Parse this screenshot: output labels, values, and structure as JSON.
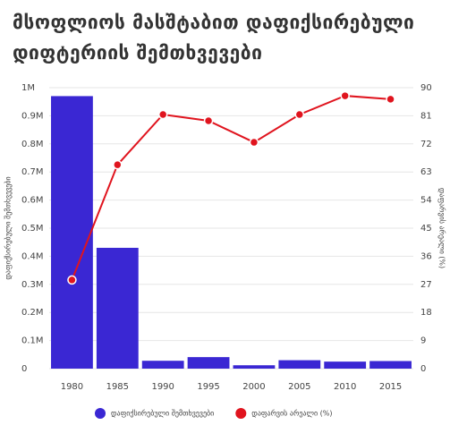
{
  "chart_data": {
    "type": "bar-line",
    "title": "მსოფლიოს მასშტაბით დაფიქსირებული დიფტერიის შემთხვევები",
    "y_label": "დაფიქსირებული შემთხვევები",
    "y2_label": "დაფარვის არეალი (%)",
    "categories": [
      "1980",
      "1985",
      "1990",
      "1995",
      "2000",
      "2005",
      "2010",
      "2015"
    ],
    "series": [
      {
        "name": "დაფიქსირებული შემთხვევები",
        "type": "bar",
        "color": "#3a27d3",
        "values": [
          970000,
          430000,
          28000,
          41000,
          12000,
          30000,
          25000,
          27000
        ]
      },
      {
        "name": "დაფარვის არეალი (%)",
        "type": "line",
        "axis": "y2",
        "color": "#e0141e",
        "values": [
          28.4,
          65.3,
          81.4,
          79.4,
          72.5,
          81.4,
          87.4,
          86.3
        ]
      }
    ],
    "ylim": [
      0,
      1000000
    ],
    "yticks": [
      {
        "value": 0,
        "label": "0"
      },
      {
        "value": 100000,
        "label": "0.1M"
      },
      {
        "value": 200000,
        "label": "0.2M"
      },
      {
        "value": 300000,
        "label": "0.3M"
      },
      {
        "value": 400000,
        "label": "0.4M"
      },
      {
        "value": 500000,
        "label": "0.5M"
      },
      {
        "value": 600000,
        "label": "0.6M"
      },
      {
        "value": 700000,
        "label": "0.7M"
      },
      {
        "value": 800000,
        "label": "0.8M"
      },
      {
        "value": 900000,
        "label": "0.9M"
      },
      {
        "value": 1000000,
        "label": "1M"
      }
    ],
    "y2lim": [
      0,
      90
    ],
    "y2ticks": [
      0,
      9,
      18,
      27,
      36,
      45,
      54,
      63,
      72,
      81,
      90
    ],
    "grid": true,
    "legend": "bottom"
  }
}
